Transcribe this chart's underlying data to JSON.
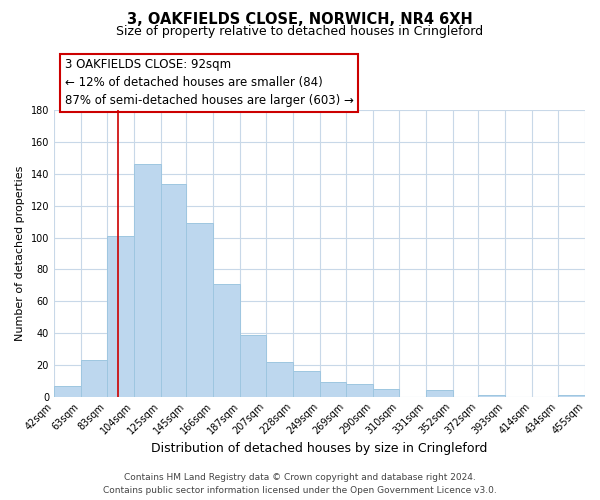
{
  "title": "3, OAKFIELDS CLOSE, NORWICH, NR4 6XH",
  "subtitle": "Size of property relative to detached houses in Cringleford",
  "xlabel": "Distribution of detached houses by size in Cringleford",
  "ylabel": "Number of detached properties",
  "bar_edges": [
    42,
    63,
    83,
    104,
    125,
    145,
    166,
    187,
    207,
    228,
    249,
    269,
    290,
    310,
    331,
    352,
    372,
    393,
    414,
    434,
    455
  ],
  "bar_heights": [
    7,
    23,
    101,
    146,
    134,
    109,
    71,
    39,
    22,
    16,
    9,
    8,
    5,
    0,
    4,
    0,
    1,
    0,
    0,
    1
  ],
  "bar_color": "#bdd7ee",
  "bar_edge_color": "#9ec6e0",
  "property_line_x": 92,
  "property_line_color": "#cc0000",
  "ylim": [
    0,
    180
  ],
  "ann_line1": "3 OAKFIELDS CLOSE: 92sqm",
  "ann_line2": "← 12% of detached houses are smaller (84)",
  "ann_line3": "87% of semi-detached houses are larger (603) →",
  "footer_line1": "Contains HM Land Registry data © Crown copyright and database right 2024.",
  "footer_line2": "Contains public sector information licensed under the Open Government Licence v3.0.",
  "background_color": "#ffffff",
  "grid_color": "#c8d8e8",
  "title_fontsize": 10.5,
  "subtitle_fontsize": 9,
  "xlabel_fontsize": 9,
  "ylabel_fontsize": 8,
  "ann_fontsize": 8.5,
  "tick_fontsize": 7,
  "footer_fontsize": 6.5
}
